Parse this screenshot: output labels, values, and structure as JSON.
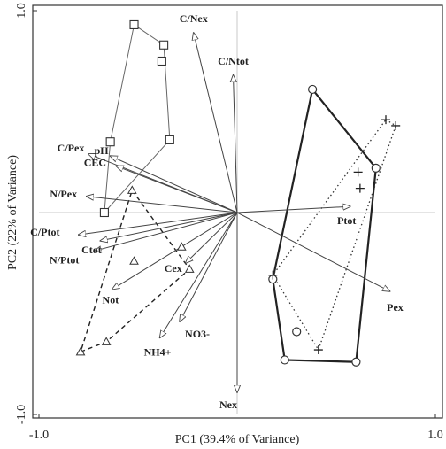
{
  "chart_data": {
    "type": "biplot",
    "xlabel": "PC1 (39.4% of Variance)",
    "ylabel": "PC2 (22% of Variance)",
    "xlim": [
      -1.0,
      1.0
    ],
    "ylim": [
      -1.0,
      1.0
    ],
    "x_ticks": [
      {
        "value": -1.0,
        "label": "-1.0"
      },
      {
        "value": 1.0,
        "label": "1.0"
      }
    ],
    "y_ticks": [
      {
        "value": 1.0,
        "label": "1.0"
      },
      {
        "value": -1.0,
        "label": "-1.0"
      }
    ],
    "zero_lines": true,
    "vectors": [
      {
        "name": "C/Nex",
        "x": -0.22,
        "y": 0.89
      },
      {
        "name": "C/Ntot",
        "x": -0.02,
        "y": 0.68
      },
      {
        "name": "pH",
        "x": -0.64,
        "y": 0.28
      },
      {
        "name": "C/Pex",
        "x": -0.75,
        "y": 0.29
      },
      {
        "name": "CEC",
        "x": -0.61,
        "y": 0.23
      },
      {
        "name": "N/Pex",
        "x": -0.76,
        "y": 0.08
      },
      {
        "name": "C/Ptot",
        "x": -0.8,
        "y": -0.11
      },
      {
        "name": "Ctot",
        "x": -0.69,
        "y": -0.14
      },
      {
        "name": "N/Ptot",
        "x": -0.72,
        "y": -0.19
      },
      {
        "name": "Not",
        "x": -0.63,
        "y": -0.38
      },
      {
        "name": "Cex",
        "x": -0.26,
        "y": -0.25
      },
      {
        "name": "NO3-",
        "x": -0.29,
        "y": -0.54
      },
      {
        "name": "NH4+",
        "x": -0.39,
        "y": -0.62
      },
      {
        "name": "Nex",
        "x": 0.0,
        "y": -0.89
      },
      {
        "name": "Ptot",
        "x": 0.57,
        "y": 0.03
      },
      {
        "name": "Pex",
        "x": 0.77,
        "y": -0.39
      }
    ],
    "groups": [
      {
        "marker": "square",
        "hull": "thin-solid",
        "points": [
          {
            "x": -0.52,
            "y": 0.93
          },
          {
            "x": -0.37,
            "y": 0.83
          },
          {
            "x": -0.38,
            "y": 0.75
          },
          {
            "x": -0.64,
            "y": 0.35
          },
          {
            "x": -0.34,
            "y": 0.36
          },
          {
            "x": -0.67,
            "y": 0.0
          }
        ],
        "hull_order": [
          0,
          1,
          4,
          5,
          3,
          0
        ]
      },
      {
        "marker": "triangle",
        "hull": "dashed",
        "points": [
          {
            "x": -0.53,
            "y": 0.11
          },
          {
            "x": -0.28,
            "y": -0.17
          },
          {
            "x": -0.52,
            "y": -0.24
          },
          {
            "x": -0.24,
            "y": -0.28
          },
          {
            "x": -0.66,
            "y": -0.64
          },
          {
            "x": -0.79,
            "y": -0.69
          }
        ],
        "hull_order": [
          0,
          3,
          4,
          5,
          0
        ]
      },
      {
        "marker": "circle",
        "hull": "thick-solid",
        "points": [
          {
            "x": 0.38,
            "y": 0.61
          },
          {
            "x": 0.7,
            "y": 0.22
          },
          {
            "x": 0.18,
            "y": -0.33
          },
          {
            "x": 0.3,
            "y": -0.59
          },
          {
            "x": 0.6,
            "y": -0.74
          },
          {
            "x": 0.24,
            "y": -0.73
          }
        ],
        "hull_order": [
          0,
          1,
          4,
          5,
          2,
          0
        ]
      },
      {
        "marker": "plus",
        "hull": "dotted",
        "points": [
          {
            "x": 0.75,
            "y": 0.46
          },
          {
            "x": 0.8,
            "y": 0.43
          },
          {
            "x": 0.61,
            "y": 0.2
          },
          {
            "x": 0.62,
            "y": 0.12
          },
          {
            "x": 0.18,
            "y": -0.31
          },
          {
            "x": 0.41,
            "y": -0.68
          }
        ],
        "hull_order": [
          0,
          1,
          5,
          4,
          0
        ]
      }
    ]
  }
}
